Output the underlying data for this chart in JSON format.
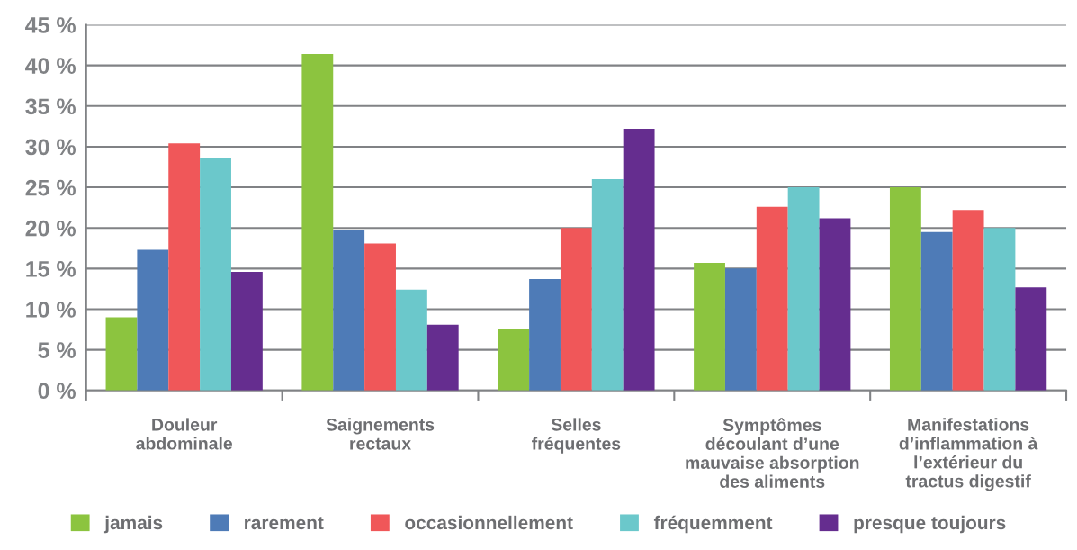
{
  "chart_data": {
    "type": "bar",
    "categories": [
      "Douleur\nabdominale",
      "Saignements\nrectaux",
      "Selles\nfréquentes",
      "Symptômes\ndécoulant d’une\nmauvaise absorption\ndes aliments",
      "Manifestations\nd’inflammation à\nl’extérieur du\ntractus digestif"
    ],
    "series": [
      {
        "name": "jamais",
        "color": "#8cc43f",
        "values": [
          9.0,
          41.4,
          7.5,
          15.7,
          25.0
        ]
      },
      {
        "name": "rarement",
        "color": "#4e7bb7",
        "values": [
          17.3,
          19.7,
          13.7,
          15.0,
          19.5
        ]
      },
      {
        "name": "occasionnellement",
        "color": "#f05759",
        "values": [
          30.4,
          18.1,
          20.0,
          22.6,
          22.2
        ]
      },
      {
        "name": "fréquemment",
        "color": "#6bc8cb",
        "values": [
          28.6,
          12.4,
          26.0,
          25.0,
          20.0
        ]
      },
      {
        "name": "presque toujours",
        "color": "#652d8f",
        "values": [
          14.6,
          8.1,
          32.2,
          21.2,
          12.7
        ]
      }
    ],
    "ylim": [
      0,
      45
    ],
    "yticks": [
      {
        "value": 0,
        "label": "0 %"
      },
      {
        "value": 5,
        "label": "5 %"
      },
      {
        "value": 10,
        "label": "10 %"
      },
      {
        "value": 15,
        "label": "15 %"
      },
      {
        "value": 20,
        "label": "20 %"
      },
      {
        "value": 25,
        "label": "25 %"
      },
      {
        "value": 30,
        "label": "30 %"
      },
      {
        "value": 35,
        "label": "35 %"
      },
      {
        "value": 40,
        "label": "40 %"
      },
      {
        "value": 45,
        "label": "45 %"
      }
    ],
    "grid": "y",
    "legend": "bottom"
  }
}
